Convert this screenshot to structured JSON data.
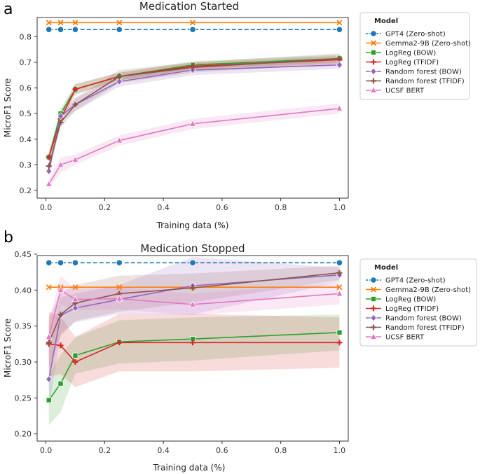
{
  "chart_data": [
    {
      "panel": "a",
      "type": "line",
      "title": "Medication Started",
      "xlabel": "Training data (%)",
      "ylabel": "MicroF1 Score",
      "xlim": [
        -0.03,
        1.03
      ],
      "ylim": [
        0.17,
        0.875
      ],
      "xticks": [
        0.0,
        0.2,
        0.4,
        0.6,
        0.8,
        1.0
      ],
      "xtick_labels": [
        "0.0",
        "0.2",
        "0.4",
        "0.6",
        "0.8",
        "1.0"
      ],
      "yticks": [
        0.2,
        0.3,
        0.4,
        0.5,
        0.6,
        0.7,
        0.8
      ],
      "ytick_labels": [
        "0.2",
        "0.3",
        "0.4",
        "0.5",
        "0.6",
        "0.7",
        "0.8"
      ],
      "legend": {
        "title": "Model",
        "position": "right"
      },
      "series": [
        {
          "name": "GPT4 (Zero-shot)",
          "color": "#1f77b4",
          "marker": "circle",
          "dashed": true,
          "x": [
            0.01,
            0.05,
            0.1,
            0.25,
            0.5,
            1.0
          ],
          "values": [
            0.828,
            0.828,
            0.828,
            0.828,
            0.828,
            0.828
          ],
          "band": null
        },
        {
          "name": "Gemma2-9B (Zero-shot)",
          "color": "#ff7f0e",
          "marker": "x",
          "dashed": false,
          "x": [
            0.01,
            0.05,
            0.1,
            0.25,
            0.5,
            1.0
          ],
          "values": [
            0.855,
            0.855,
            0.855,
            0.855,
            0.855,
            0.855
          ],
          "band": null
        },
        {
          "name": "LogReg (BOW)",
          "color": "#2ca02c",
          "marker": "square",
          "dashed": false,
          "x": [
            0.01,
            0.05,
            0.1,
            0.25,
            0.5,
            1.0
          ],
          "values": [
            0.33,
            0.5,
            0.595,
            0.645,
            0.69,
            0.715
          ],
          "band": [
            0.02,
            0.02,
            0.02,
            0.015,
            0.015,
            0.015
          ]
        },
        {
          "name": "LogReg (TFIDF)",
          "color": "#d62728",
          "marker": "plus",
          "dashed": false,
          "x": [
            0.01,
            0.05,
            0.1,
            0.25,
            0.5,
            1.0
          ],
          "values": [
            0.33,
            0.48,
            0.595,
            0.645,
            0.685,
            0.71
          ],
          "band": [
            0.02,
            0.02,
            0.02,
            0.015,
            0.015,
            0.015
          ]
        },
        {
          "name": "Random forest (BOW)",
          "color": "#9467bd",
          "marker": "diamond",
          "dashed": false,
          "x": [
            0.01,
            0.05,
            0.1,
            0.25,
            0.5,
            1.0
          ],
          "values": [
            0.275,
            0.49,
            0.535,
            0.625,
            0.67,
            0.69
          ],
          "band": [
            0.02,
            0.02,
            0.025,
            0.02,
            0.02,
            0.015
          ]
        },
        {
          "name": "Random forest (TFIDF)",
          "color": "#8c564b",
          "marker": "plus",
          "dashed": false,
          "x": [
            0.01,
            0.05,
            0.1,
            0.25,
            0.5,
            1.0
          ],
          "values": [
            0.295,
            0.465,
            0.535,
            0.645,
            0.68,
            0.715
          ],
          "band": [
            0.02,
            0.02,
            0.025,
            0.025,
            0.02,
            0.02
          ]
        },
        {
          "name": "UCSF BERT",
          "color": "#e377c2",
          "marker": "triangle",
          "dashed": false,
          "x": [
            0.01,
            0.05,
            0.1,
            0.25,
            0.5,
            1.0
          ],
          "values": [
            0.225,
            0.3,
            0.32,
            0.395,
            0.46,
            0.52
          ],
          "band": [
            0.02,
            0.03,
            0.02,
            0.02,
            0.02,
            0.02
          ]
        }
      ]
    },
    {
      "panel": "b",
      "type": "line",
      "title": "Medication Stopped",
      "xlabel": "Training data (%)",
      "ylabel": "MicroF1 Score",
      "xlim": [
        -0.03,
        1.03
      ],
      "ylim": [
        0.19,
        0.448
      ],
      "xticks": [
        0.0,
        0.2,
        0.4,
        0.6,
        0.8,
        1.0
      ],
      "xtick_labels": [
        "0.0",
        "0.2",
        "0.4",
        "0.6",
        "0.8",
        "1.0"
      ],
      "yticks": [
        0.2,
        0.25,
        0.3,
        0.35,
        0.4,
        0.45
      ],
      "ytick_labels": [
        "0.20",
        "0.25",
        "0.30",
        "0.35",
        "0.40",
        "0.45"
      ],
      "legend": {
        "title": "Model",
        "position": "right"
      },
      "series": [
        {
          "name": "GPT4 (Zero-shot)",
          "color": "#1f77b4",
          "marker": "circle",
          "dashed": true,
          "x": [
            0.01,
            0.05,
            0.1,
            0.25,
            0.5,
            1.0
          ],
          "values": [
            0.438,
            0.438,
            0.438,
            0.438,
            0.438,
            0.438
          ],
          "band": null
        },
        {
          "name": "Gemma2-9B (Zero-shot)",
          "color": "#ff7f0e",
          "marker": "x",
          "dashed": false,
          "x": [
            0.01,
            0.05,
            0.1,
            0.25,
            0.5,
            1.0
          ],
          "values": [
            0.404,
            0.404,
            0.404,
            0.404,
            0.404,
            0.404
          ],
          "band": null
        },
        {
          "name": "LogReg (BOW)",
          "color": "#2ca02c",
          "marker": "square",
          "dashed": false,
          "x": [
            0.01,
            0.05,
            0.1,
            0.25,
            0.5,
            1.0
          ],
          "values": [
            0.247,
            0.27,
            0.309,
            0.328,
            0.332,
            0.341
          ],
          "band": [
            0.035,
            0.04,
            0.025,
            0.03,
            0.03,
            0.025
          ]
        },
        {
          "name": "LogReg (TFIDF)",
          "color": "#d62728",
          "marker": "plus",
          "dashed": false,
          "x": [
            0.01,
            0.05,
            0.1,
            0.25,
            0.5,
            1.0
          ],
          "values": [
            0.325,
            0.323,
            0.3,
            0.327,
            0.327,
            0.327
          ],
          "band": [
            0.045,
            0.04,
            0.035,
            0.04,
            0.04,
            0.035
          ]
        },
        {
          "name": "Random forest (BOW)",
          "color": "#9467bd",
          "marker": "diamond",
          "dashed": false,
          "x": [
            0.01,
            0.05,
            0.1,
            0.25,
            0.5,
            1.0
          ],
          "values": [
            0.276,
            0.365,
            0.375,
            0.387,
            0.406,
            0.421
          ],
          "band": [
            0.04,
            0.025,
            0.02,
            0.02,
            0.04,
            0.01
          ]
        },
        {
          "name": "Random forest (TFIDF)",
          "color": "#8c564b",
          "marker": "plus",
          "dashed": false,
          "x": [
            0.01,
            0.05,
            0.1,
            0.25,
            0.5,
            1.0
          ],
          "values": [
            0.327,
            0.366,
            0.382,
            0.395,
            0.403,
            0.424
          ],
          "band": [
            0.035,
            0.03,
            0.025,
            0.025,
            0.02,
            0.01
          ]
        },
        {
          "name": "UCSF BERT",
          "color": "#e377c2",
          "marker": "triangle",
          "dashed": false,
          "x": [
            0.01,
            0.05,
            0.1,
            0.25,
            0.5,
            1.0
          ],
          "values": [
            0.335,
            0.4,
            0.387,
            0.388,
            0.38,
            0.395
          ],
          "band": [
            0.02,
            0.02,
            0.015,
            0.015,
            0.015,
            0.015
          ]
        }
      ]
    }
  ]
}
